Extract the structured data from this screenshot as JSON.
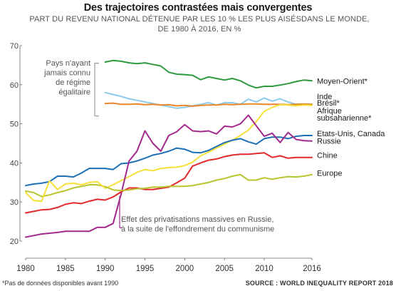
{
  "title": "Des trajectoires contrastées mais convergentes",
  "subtitle_line1": "PART DU REVENU NATIONAL DÉTENUE PAR LES 10 % LES PLUS AISÉSDANS LE MONDE,",
  "subtitle_line2": "DE 1980 À 2016, EN %",
  "footnote": "*Pas de données disponibles avant 1990",
  "source": "SOURCE : WORLD INEQUALITY REPORT 2018",
  "chart_data": {
    "type": "line",
    "xlabel": "",
    "ylabel": "",
    "xlim": [
      1980,
      2016
    ],
    "ylim": [
      20,
      70
    ],
    "x_ticks": [
      1980,
      1985,
      1990,
      1995,
      2000,
      2005,
      2010,
      2016
    ],
    "y_ticks": [
      20,
      30,
      40,
      50,
      60,
      70
    ],
    "grid": false,
    "annotations": {
      "bracket_label": [
        "Pays n'ayant",
        "jamais connu",
        "de régime",
        "égalitaire"
      ],
      "russia_note": [
        "Effet des privatisations massives en Russie,",
        "à la suite de l'effondrement du communisme"
      ]
    },
    "series": [
      {
        "name": "Moyen-Orient*",
        "color": "#2e9a3e",
        "x": [
          1990,
          1991,
          1992,
          1993,
          1994,
          1995,
          1996,
          1997,
          1998,
          1999,
          2000,
          2001,
          2002,
          2003,
          2004,
          2005,
          2006,
          2007,
          2008,
          2009,
          2010,
          2011,
          2012,
          2013,
          2014,
          2015,
          2016
        ],
        "y": [
          65.8,
          66.2,
          66.0,
          65.6,
          65.4,
          65.6,
          65.2,
          64.8,
          63.2,
          62.7,
          62.6,
          62.4,
          61.3,
          62.0,
          61.6,
          61.2,
          61.6,
          61.0,
          59.9,
          59.2,
          59.6,
          59.6,
          59.9,
          60.3,
          60.8,
          61.2,
          61.0
        ]
      },
      {
        "name": "Inde",
        "color": "#8ccbea",
        "x": [
          1990,
          1991,
          1992,
          1993,
          1994,
          1995,
          1996,
          1997,
          1998,
          1999,
          2000,
          2001,
          2002,
          2003,
          2004,
          2005,
          2006,
          2007,
          2008,
          2009,
          2010,
          2011,
          2012,
          2013,
          2014,
          2015,
          2016
        ],
        "y": [
          58.0,
          57.5,
          57.0,
          56.4,
          56.0,
          55.6,
          55.2,
          54.8,
          54.4,
          54.0,
          54.2,
          54.6,
          55.0,
          55.4,
          54.8,
          55.4,
          55.4,
          55.0,
          56.3,
          55.6,
          56.6,
          55.8,
          56.4,
          55.6,
          55.0,
          55.0,
          55.0
        ]
      },
      {
        "name": "Brésil*",
        "color": "#e9862a",
        "x": [
          1990,
          1991,
          1992,
          1993,
          1994,
          1995,
          1996,
          1997,
          1998,
          1999,
          2000,
          2001,
          2002,
          2003,
          2004,
          2005,
          2006,
          2007,
          2008,
          2009,
          2010,
          2011,
          2012,
          2013,
          2014,
          2015,
          2016
        ],
        "y": [
          55.2,
          55.3,
          55.0,
          55.0,
          55.1,
          54.9,
          55.0,
          54.8,
          54.9,
          54.6,
          54.7,
          54.5,
          54.7,
          54.8,
          54.8,
          55.0,
          54.9,
          55.0,
          55.1,
          55.1,
          55.0,
          55.0,
          55.0,
          54.9,
          55.0,
          55.1,
          55.0
        ]
      },
      {
        "name": "Afrique subsaharienne*",
        "color": "#f6e03a",
        "x": [
          1990,
          1991,
          1992,
          1993,
          1994,
          1995,
          1996,
          1997,
          1998,
          1999,
          2000,
          2001,
          2002,
          2003,
          2004,
          2005,
          2006,
          2007,
          2008,
          2009,
          2010,
          2011,
          2012,
          2013,
          2014,
          2015,
          2016
        ],
        "y": [
          33.5,
          34.4,
          35.5,
          36.5,
          37.6,
          38.3,
          38.0,
          38.6,
          38.8,
          38.9,
          39.3,
          40.2,
          41.8,
          42.8,
          43.8,
          44.8,
          45.8,
          47.0,
          48.4,
          50.6,
          53.2,
          54.2,
          54.9,
          54.8,
          54.6,
          54.8,
          54.7
        ]
      },
      {
        "name": "Etats-Unis, Canada",
        "color": "#1c6fb5",
        "x": [
          1980,
          1981,
          1982,
          1983,
          1984,
          1985,
          1986,
          1987,
          1988,
          1989,
          1990,
          1991,
          1992,
          1993,
          1994,
          1995,
          1996,
          1997,
          1998,
          1999,
          2000,
          2001,
          2002,
          2003,
          2004,
          2005,
          2006,
          2007,
          2008,
          2009,
          2010,
          2011,
          2012,
          2013,
          2014,
          2015,
          2016
        ],
        "y": [
          34.2,
          34.6,
          34.8,
          35.2,
          36.6,
          36.6,
          36.4,
          37.4,
          38.6,
          38.6,
          38.6,
          38.3,
          39.8,
          40.0,
          40.5,
          41.2,
          42.0,
          42.4,
          43.0,
          43.8,
          43.5,
          42.7,
          42.6,
          43.2,
          44.2,
          45.2,
          45.8,
          46.2,
          45.4,
          44.8,
          46.2,
          46.6,
          46.6,
          46.2,
          46.8,
          47.0,
          47.0
        ]
      },
      {
        "name": "Russie",
        "color": "#a3298d",
        "x": [
          1980,
          1981,
          1982,
          1983,
          1984,
          1985,
          1986,
          1987,
          1988,
          1989,
          1990,
          1991,
          1992,
          1993,
          1994,
          1995,
          1996,
          1997,
          1998,
          1999,
          2000,
          2001,
          2002,
          2003,
          2004,
          2005,
          2006,
          2007,
          2008,
          2009,
          2010,
          2011,
          2012,
          2013,
          2014,
          2015,
          2016
        ],
        "y": [
          21.0,
          21.4,
          21.8,
          22.0,
          22.2,
          22.5,
          22.5,
          22.5,
          22.5,
          23.5,
          23.5,
          24.5,
          32.0,
          40.5,
          43.0,
          48.2,
          45.0,
          43.0,
          47.0,
          48.0,
          49.8,
          48.2,
          48.0,
          48.2,
          47.4,
          49.4,
          49.2,
          50.0,
          52.2,
          49.5,
          46.8,
          47.6,
          45.2,
          47.8,
          46.0,
          45.7,
          45.6
        ]
      },
      {
        "name": "Chine",
        "color": "#e4282c",
        "x": [
          1980,
          1981,
          1982,
          1983,
          1984,
          1985,
          1986,
          1987,
          1988,
          1989,
          1990,
          1991,
          1992,
          1993,
          1994,
          1995,
          1996,
          1997,
          1998,
          1999,
          2000,
          2001,
          2002,
          2003,
          2004,
          2005,
          2006,
          2007,
          2008,
          2009,
          2010,
          2011,
          2012,
          2013,
          2014,
          2015,
          2016
        ],
        "y": [
          27.2,
          27.6,
          28.0,
          28.1,
          28.6,
          29.4,
          29.8,
          29.6,
          30.2,
          30.7,
          30.5,
          31.3,
          32.6,
          33.6,
          33.6,
          33.2,
          33.2,
          33.5,
          33.8,
          34.9,
          36.1,
          39.2,
          40.0,
          40.7,
          41.0,
          41.6,
          42.0,
          42.2,
          42.2,
          42.4,
          42.6,
          41.4,
          41.8,
          41.2,
          41.4,
          41.4,
          41.4
        ]
      },
      {
        "name": "Europe",
        "color": "#b8c42c",
        "x": [
          1980,
          1981,
          1982,
          1983,
          1984,
          1985,
          1986,
          1987,
          1988,
          1989,
          1990,
          1991,
          1992,
          1993,
          1994,
          1995,
          1996,
          1997,
          1998,
          1999,
          2000,
          2001,
          2002,
          2003,
          2004,
          2005,
          2006,
          2007,
          2008,
          2009,
          2010,
          2011,
          2012,
          2013,
          2014,
          2015,
          2016
        ],
        "y": [
          32.8,
          32.4,
          31.4,
          31.8,
          32.4,
          32.9,
          33.6,
          34.0,
          34.4,
          34.4,
          33.9,
          33.1,
          32.9,
          33.1,
          33.4,
          33.5,
          33.8,
          33.8,
          34.0,
          34.0,
          34.0,
          34.2,
          34.6,
          35.0,
          35.6,
          36.0,
          36.6,
          37.0,
          35.6,
          35.6,
          36.2,
          35.8,
          36.2,
          36.5,
          36.4,
          36.6,
          37.0
        ]
      },
      {
        "name": "",
        "color": "#f6e03a",
        "x": [
          1980,
          1981,
          1982,
          1983,
          1984,
          1985,
          1986,
          1987,
          1988,
          1989,
          1990
        ],
        "y": [
          32.4,
          30.4,
          30.2,
          35.4,
          33.2,
          34.6,
          34.8,
          34.4,
          35.0,
          35.2,
          33.5
        ]
      }
    ],
    "legend": [
      {
        "label": "Moyen-Orient*",
        "y": 61.0
      },
      {
        "label": "Inde",
        "y": 57.0
      },
      {
        "label": "Brésil*",
        "y": 55.4
      },
      {
        "label": "Afrique",
        "y": 53.4
      },
      {
        "label": "subsaharienne*",
        "y": 51.6
      },
      {
        "label": "Etats-Unis, Canada",
        "y": 47.6
      },
      {
        "label": "Russie",
        "y": 45.6
      },
      {
        "label": "Chine",
        "y": 42.0
      },
      {
        "label": "Europe",
        "y": 37.4
      }
    ]
  }
}
